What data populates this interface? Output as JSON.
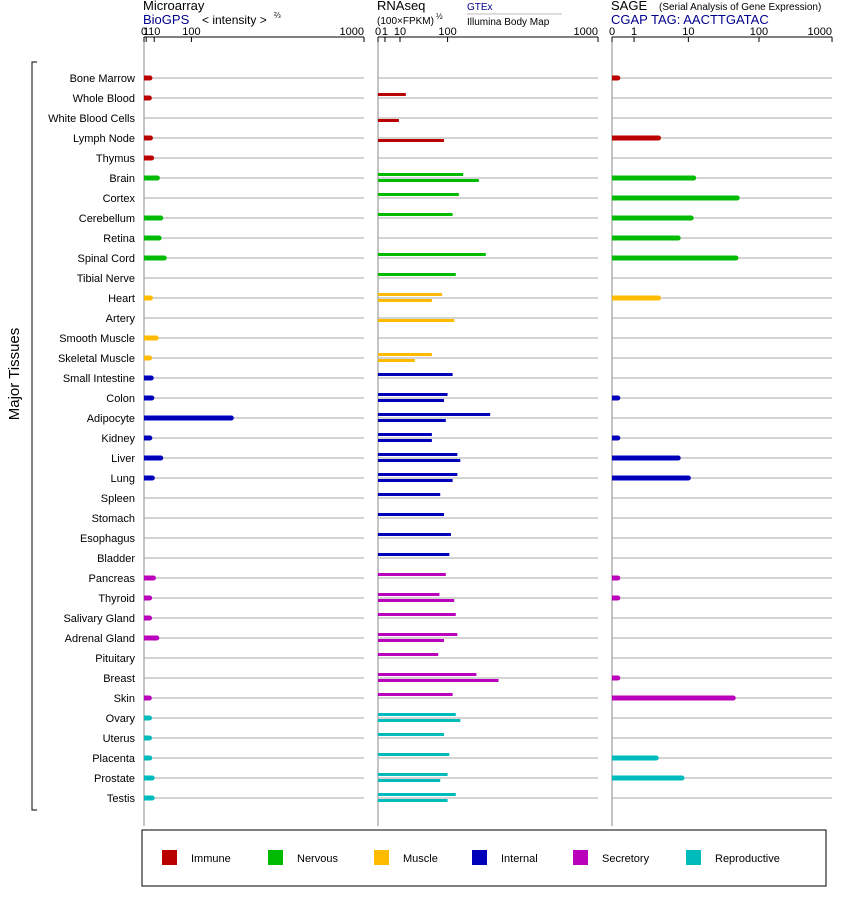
{
  "chart_data": {
    "type": "bar",
    "ylabel": "Major Tissues",
    "panels": [
      {
        "id": "microarray",
        "title": "Microarray",
        "subtitle": "BioGPS",
        "unit": "< intensity >",
        "unit_exp": "⅔",
        "ticks": [
          "0",
          "1",
          "10",
          "100",
          "1000"
        ],
        "scale": "power 2/3",
        "xlim": [
          0,
          1000
        ]
      },
      {
        "id": "rnaseq",
        "title": "RNAseq",
        "unit": "(100×FPKM)",
        "unit_exp": "½",
        "ticks": [
          "0",
          "1",
          "10",
          "100",
          "1000"
        ],
        "scale": "power 1/2",
        "xlim": [
          0,
          1000
        ],
        "series": [
          {
            "name": "GTEx"
          },
          {
            "name": "Illumina Body Map"
          }
        ]
      },
      {
        "id": "sage",
        "title": "SAGE",
        "subtitle_note": "(Serial Analysis of Gene Expression)",
        "tag_label": "CGAP  TAG: AACTTGATAC",
        "ticks": [
          "0",
          "1",
          "10",
          "100",
          "1000"
        ],
        "scale": "log-like",
        "xlim": [
          0,
          1000
        ]
      }
    ],
    "categories": [
      "Bone Marrow",
      "Whole Blood",
      "White Blood Cells",
      "Lymph Node",
      "Thymus",
      "Brain",
      "Cortex",
      "Cerebellum",
      "Retina",
      "Spinal Cord",
      "Tibial Nerve",
      "Heart",
      "Artery",
      "Smooth Muscle",
      "Skeletal Muscle",
      "Small Intestine",
      "Colon",
      "Adipocyte",
      "Kidney",
      "Liver",
      "Lung",
      "Spleen",
      "Stomach",
      "Esophagus",
      "Bladder",
      "Pancreas",
      "Thyroid",
      "Salivary Gland",
      "Adrenal Gland",
      "Pituitary",
      "Breast",
      "Skin",
      "Ovary",
      "Uterus",
      "Placenta",
      "Prostate",
      "Testis"
    ],
    "groups": [
      0,
      0,
      0,
      0,
      0,
      1,
      1,
      1,
      1,
      1,
      1,
      2,
      2,
      2,
      2,
      3,
      3,
      3,
      3,
      3,
      3,
      3,
      3,
      3,
      3,
      4,
      4,
      4,
      4,
      4,
      4,
      4,
      5,
      5,
      5,
      5,
      5
    ],
    "legend": {
      "placement": "bottom",
      "items": [
        {
          "label": "Immune",
          "color": "#bb0000"
        },
        {
          "label": "Nervous",
          "color": "#00bb00"
        },
        {
          "label": "Muscle",
          "color": "#ffbb00"
        },
        {
          "label": "Internal",
          "color": "#0000bb"
        },
        {
          "label": "Secretory",
          "color": "#bb00bb"
        },
        {
          "label": "Reproductive",
          "color": "#00bbbb"
        }
      ]
    },
    "microarray_values": [
      4.4,
      3.8,
      null,
      5.0,
      6.4,
      15,
      null,
      21,
      18,
      28,
      null,
      5.0,
      null,
      13,
      4.0,
      6.0,
      6.7,
      250,
      4.3,
      21,
      7.4,
      null,
      null,
      null,
      null,
      8.9,
      4.1,
      4.0,
      14,
      null,
      null,
      3.8,
      3.9,
      3.9,
      4.2,
      7.1,
      7.1
    ],
    "rnaseq_gtex": [
      null,
      16,
      null,
      null,
      null,
      150,
      135,
      115,
      null,
      240,
      125,
      85,
      null,
      null,
      60,
      115,
      100,
      260,
      60,
      130,
      130,
      80,
      90,
      110,
      105,
      95,
      78,
      125,
      130,
      75,
      200,
      115,
      125,
      90,
      105,
      100,
      125
    ],
    "rnaseq_ibm": [
      null,
      null,
      9,
      90,
      null,
      210,
      null,
      null,
      null,
      null,
      null,
      60,
      120,
      null,
      28,
      null,
      90,
      95,
      60,
      140,
      115,
      null,
      null,
      null,
      null,
      null,
      120,
      null,
      90,
      null,
      300,
      null,
      140,
      null,
      null,
      80,
      100
    ],
    "sage_values": [
      0.2,
      null,
      null,
      3.3,
      null,
      12,
      50,
      11,
      7,
      48,
      null,
      3.3,
      null,
      null,
      null,
      null,
      0.2,
      null,
      0.2,
      7,
      10,
      null,
      null,
      null,
      null,
      0.2,
      0.2,
      null,
      null,
      null,
      0.2,
      44,
      null,
      null,
      3,
      8,
      null
    ]
  }
}
